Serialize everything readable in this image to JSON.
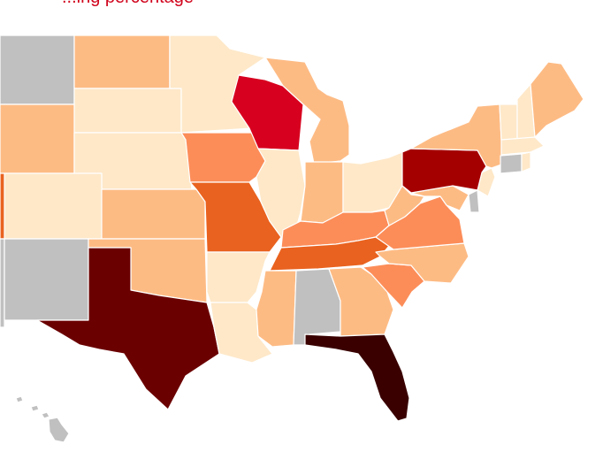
{
  "map": {
    "title": "...ing percentage",
    "colors": {
      "no_data": "#c0c0c0",
      "level_1": "#fee8c8",
      "level_2": "#fdbb84",
      "level_3": "#fc8d59",
      "level_4": "#e9621f",
      "level_5": "#d7001f",
      "level_6": "#a50000",
      "level_7": "#6b0000",
      "level_8": "#3a0000"
    },
    "states": [
      {
        "id": "WA-OR-ID",
        "level": "no_data"
      },
      {
        "id": "MT",
        "level": "level_2"
      },
      {
        "id": "ND",
        "level": "level_2"
      },
      {
        "id": "SD",
        "level": "level_1"
      },
      {
        "id": "WY",
        "level": "level_2"
      },
      {
        "id": "NE",
        "level": "level_1"
      },
      {
        "id": "CO",
        "level": "level_1"
      },
      {
        "id": "KS",
        "level": "level_2"
      },
      {
        "id": "NV-CA",
        "level": "level_4"
      },
      {
        "id": "AZ",
        "level": "no_data"
      },
      {
        "id": "NM",
        "level": "no_data"
      },
      {
        "id": "OK",
        "level": "level_2"
      },
      {
        "id": "TX",
        "level": "level_7"
      },
      {
        "id": "MN",
        "level": "level_1"
      },
      {
        "id": "IA",
        "level": "level_3"
      },
      {
        "id": "MO",
        "level": "level_4"
      },
      {
        "id": "AR",
        "level": "level_1"
      },
      {
        "id": "LA",
        "level": "level_1"
      },
      {
        "id": "WI",
        "level": "level_5"
      },
      {
        "id": "IL",
        "level": "level_1"
      },
      {
        "id": "MI",
        "level": "level_2"
      },
      {
        "id": "IN",
        "level": "level_2"
      },
      {
        "id": "OH",
        "level": "level_1"
      },
      {
        "id": "KY",
        "level": "level_3"
      },
      {
        "id": "TN",
        "level": "level_4"
      },
      {
        "id": "MS",
        "level": "level_2"
      },
      {
        "id": "AL",
        "level": "no_data"
      },
      {
        "id": "GA",
        "level": "level_2"
      },
      {
        "id": "FL",
        "level": "level_8"
      },
      {
        "id": "SC",
        "level": "level_3"
      },
      {
        "id": "NC",
        "level": "level_2"
      },
      {
        "id": "VA",
        "level": "level_3"
      },
      {
        "id": "WV",
        "level": "level_2"
      },
      {
        "id": "MD",
        "level": "level_2"
      },
      {
        "id": "DE",
        "level": "no_data"
      },
      {
        "id": "NJ",
        "level": "level_1"
      },
      {
        "id": "PA",
        "level": "level_6"
      },
      {
        "id": "NY",
        "level": "level_2"
      },
      {
        "id": "VT",
        "level": "level_1"
      },
      {
        "id": "NH",
        "level": "level_1"
      },
      {
        "id": "ME",
        "level": "level_2"
      },
      {
        "id": "MA",
        "level": "level_1"
      },
      {
        "id": "CT",
        "level": "no_data"
      },
      {
        "id": "RI",
        "level": "level_1"
      },
      {
        "id": "HI",
        "level": "no_data"
      }
    ]
  }
}
